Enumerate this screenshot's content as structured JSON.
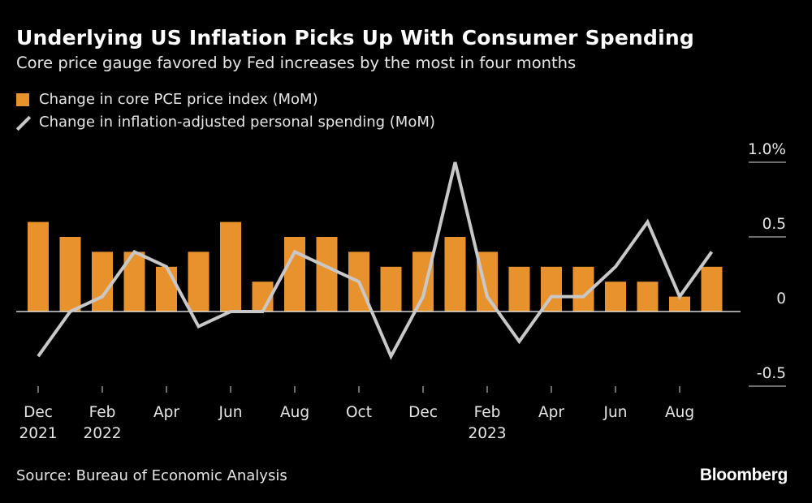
{
  "title": "Underlying US Inflation Picks Up With Consumer Spending",
  "subtitle": "Core price gauge favored by Fed increases by the most in four months",
  "source": "Source: Bureau of Economic Analysis",
  "brand": "Bloomberg",
  "colors": {
    "bar": "#e8922d",
    "line": "#c8c8c8",
    "background": "#000000"
  },
  "chart_data": {
    "type": "bar+line",
    "categories": [
      "Dec 2021",
      "Jan 2022",
      "Feb 2022",
      "Mar 2022",
      "Apr 2022",
      "May 2022",
      "Jun 2022",
      "Jul 2022",
      "Aug 2022",
      "Sep 2022",
      "Oct 2022",
      "Nov 2022",
      "Dec 2022",
      "Jan 2023",
      "Feb 2023",
      "Mar 2023",
      "Apr 2023",
      "May 2023",
      "Jun 2023",
      "Jul 2023",
      "Aug 2023",
      "Sep 2023"
    ],
    "series": [
      {
        "name": "Change in core PCE price index (MoM)",
        "type": "bar",
        "values": [
          0.6,
          0.5,
          0.4,
          0.4,
          0.3,
          0.4,
          0.6,
          0.2,
          0.5,
          0.5,
          0.4,
          0.3,
          0.4,
          0.5,
          0.4,
          0.3,
          0.3,
          0.3,
          0.2,
          0.2,
          0.1,
          0.3
        ]
      },
      {
        "name": "Change in inflation-adjusted personal spending (MoM)",
        "type": "line",
        "values": [
          -0.3,
          0.0,
          0.1,
          0.4,
          0.3,
          -0.1,
          0.0,
          0.0,
          0.4,
          0.3,
          0.2,
          -0.3,
          0.1,
          1.0,
          0.1,
          -0.2,
          0.1,
          0.1,
          0.3,
          0.6,
          0.1,
          0.4
        ]
      }
    ],
    "x_tick_labels": [
      {
        "index": 0,
        "line1": "Dec",
        "line2": "2021"
      },
      {
        "index": 2,
        "line1": "Feb",
        "line2": "2022"
      },
      {
        "index": 4,
        "line1": "Apr",
        "line2": ""
      },
      {
        "index": 6,
        "line1": "Jun",
        "line2": ""
      },
      {
        "index": 8,
        "line1": "Aug",
        "line2": ""
      },
      {
        "index": 10,
        "line1": "Oct",
        "line2": ""
      },
      {
        "index": 12,
        "line1": "Dec",
        "line2": ""
      },
      {
        "index": 14,
        "line1": "Feb",
        "line2": "2023"
      },
      {
        "index": 16,
        "line1": "Apr",
        "line2": ""
      },
      {
        "index": 18,
        "line1": "Jun",
        "line2": ""
      },
      {
        "index": 20,
        "line1": "Aug",
        "line2": ""
      }
    ],
    "y_ticks": [
      {
        "value": 1.0,
        "label": "1.0%"
      },
      {
        "value": 0.5,
        "label": "0.5"
      },
      {
        "value": 0,
        "label": "0"
      },
      {
        "value": -0.5,
        "label": "-0.5"
      }
    ],
    "ylim": [
      -0.5,
      1.0
    ],
    "y_axis_position": "right",
    "legend_position": "top-left",
    "grid": false
  }
}
